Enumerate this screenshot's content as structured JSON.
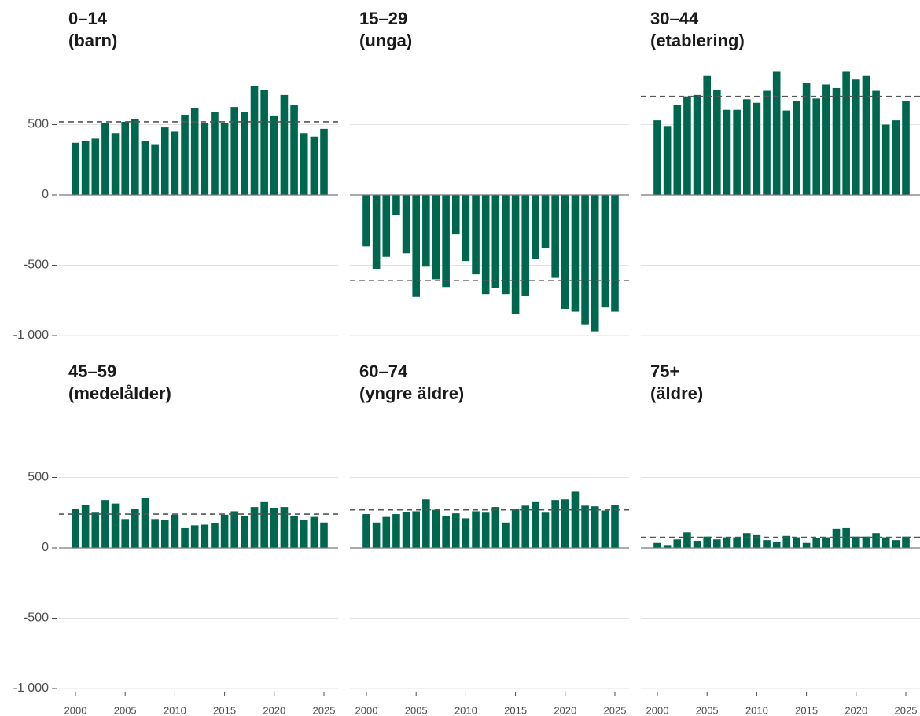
{
  "chart_data": [
    {
      "type": "bar",
      "title": "0–14",
      "subtitle": "(barn)",
      "color": "#00674f",
      "x": [
        2000,
        2001,
        2002,
        2003,
        2004,
        2005,
        2006,
        2007,
        2008,
        2009,
        2010,
        2011,
        2012,
        2013,
        2014,
        2015,
        2016,
        2017,
        2018,
        2019,
        2020,
        2021,
        2022,
        2023,
        2024,
        2025
      ],
      "values": [
        370,
        380,
        400,
        510,
        440,
        520,
        540,
        380,
        360,
        480,
        450,
        570,
        615,
        510,
        590,
        510,
        625,
        590,
        775,
        745,
        565,
        710,
        640,
        440,
        415,
        470
      ],
      "reference_line": 520,
      "ylim": [
        -1000,
        900
      ],
      "yticks": [
        {
          "value": -1000,
          "label": "-1 000"
        },
        -500,
        0,
        500
      ],
      "grid": true
    },
    {
      "type": "bar",
      "title": "15–29",
      "subtitle": "(unga)",
      "color": "#00674f",
      "x": [
        2000,
        2001,
        2002,
        2003,
        2004,
        2005,
        2006,
        2007,
        2008,
        2009,
        2010,
        2011,
        2012,
        2013,
        2014,
        2015,
        2016,
        2017,
        2018,
        2019,
        2020,
        2021,
        2022,
        2023,
        2024,
        2025
      ],
      "values": [
        -365,
        -525,
        -440,
        -145,
        -415,
        -725,
        -510,
        -600,
        -655,
        -280,
        -470,
        -565,
        -705,
        -660,
        -705,
        -845,
        -715,
        -455,
        -380,
        -590,
        -810,
        -830,
        -920,
        -970,
        -800,
        -830
      ],
      "reference_line": -610,
      "ylim": [
        -1000,
        900
      ],
      "yticks": [
        -1000,
        -500,
        0,
        500
      ],
      "grid": true
    },
    {
      "type": "bar",
      "title": "30–44",
      "subtitle": "(etablering)",
      "color": "#00674f",
      "x": [
        2000,
        2001,
        2002,
        2003,
        2004,
        2005,
        2006,
        2007,
        2008,
        2009,
        2010,
        2011,
        2012,
        2013,
        2014,
        2015,
        2016,
        2017,
        2018,
        2019,
        2020,
        2021,
        2022,
        2023,
        2024,
        2025
      ],
      "values": [
        530,
        490,
        640,
        700,
        710,
        845,
        745,
        605,
        605,
        680,
        655,
        740,
        880,
        600,
        670,
        795,
        685,
        785,
        760,
        880,
        820,
        845,
        740,
        500,
        530,
        670
      ],
      "reference_line": 700,
      "ylim": [
        -1000,
        900
      ],
      "yticks": [
        -1000,
        -500,
        0,
        500
      ],
      "grid": true
    },
    {
      "type": "bar",
      "title": "45–59",
      "subtitle": "(medelålder)",
      "color": "#00674f",
      "x": [
        2000,
        2001,
        2002,
        2003,
        2004,
        2005,
        2006,
        2007,
        2008,
        2009,
        2010,
        2011,
        2012,
        2013,
        2014,
        2015,
        2016,
        2017,
        2018,
        2019,
        2020,
        2021,
        2022,
        2023,
        2024,
        2025
      ],
      "values": [
        275,
        305,
        250,
        340,
        315,
        205,
        275,
        355,
        205,
        200,
        235,
        140,
        160,
        165,
        175,
        235,
        260,
        225,
        290,
        325,
        285,
        290,
        225,
        200,
        220,
        180
      ],
      "reference_line": 240,
      "ylim": [
        -1000,
        900
      ],
      "yticks": [
        {
          "value": -1000,
          "label": "-1 000"
        },
        -500,
        0,
        500
      ],
      "grid": true,
      "xticks": [
        2000,
        2005,
        2010,
        2015,
        2020,
        2025
      ]
    },
    {
      "type": "bar",
      "title": "60–74",
      "subtitle": "(yngre äldre)",
      "color": "#00674f",
      "x": [
        2000,
        2001,
        2002,
        2003,
        2004,
        2005,
        2006,
        2007,
        2008,
        2009,
        2010,
        2011,
        2012,
        2013,
        2014,
        2015,
        2016,
        2017,
        2018,
        2019,
        2020,
        2021,
        2022,
        2023,
        2024,
        2025
      ],
      "values": [
        240,
        180,
        220,
        240,
        255,
        260,
        345,
        270,
        225,
        245,
        210,
        260,
        250,
        290,
        180,
        275,
        300,
        325,
        250,
        340,
        345,
        400,
        300,
        295,
        265,
        305
      ],
      "reference_line": 270,
      "ylim": [
        -1000,
        900
      ],
      "yticks": [
        -1000,
        -500,
        0,
        500
      ],
      "grid": true,
      "xticks": [
        2000,
        2005,
        2010,
        2015,
        2020,
        2025
      ]
    },
    {
      "type": "bar",
      "title": "75+",
      "subtitle": "(äldre)",
      "color": "#00674f",
      "x": [
        2000,
        2001,
        2002,
        2003,
        2004,
        2005,
        2006,
        2007,
        2008,
        2009,
        2010,
        2011,
        2012,
        2013,
        2014,
        2015,
        2016,
        2017,
        2018,
        2019,
        2020,
        2021,
        2022,
        2023,
        2024,
        2025
      ],
      "values": [
        35,
        15,
        60,
        110,
        50,
        80,
        60,
        75,
        75,
        105,
        90,
        55,
        40,
        85,
        75,
        35,
        70,
        75,
        135,
        140,
        80,
        80,
        105,
        75,
        55,
        80
      ],
      "reference_line": 75,
      "ylim": [
        -1000,
        900
      ],
      "yticks": [
        -1000,
        -500,
        0,
        500
      ],
      "grid": true,
      "xticks": [
        2000,
        2005,
        2010,
        2015,
        2020,
        2025
      ]
    }
  ]
}
